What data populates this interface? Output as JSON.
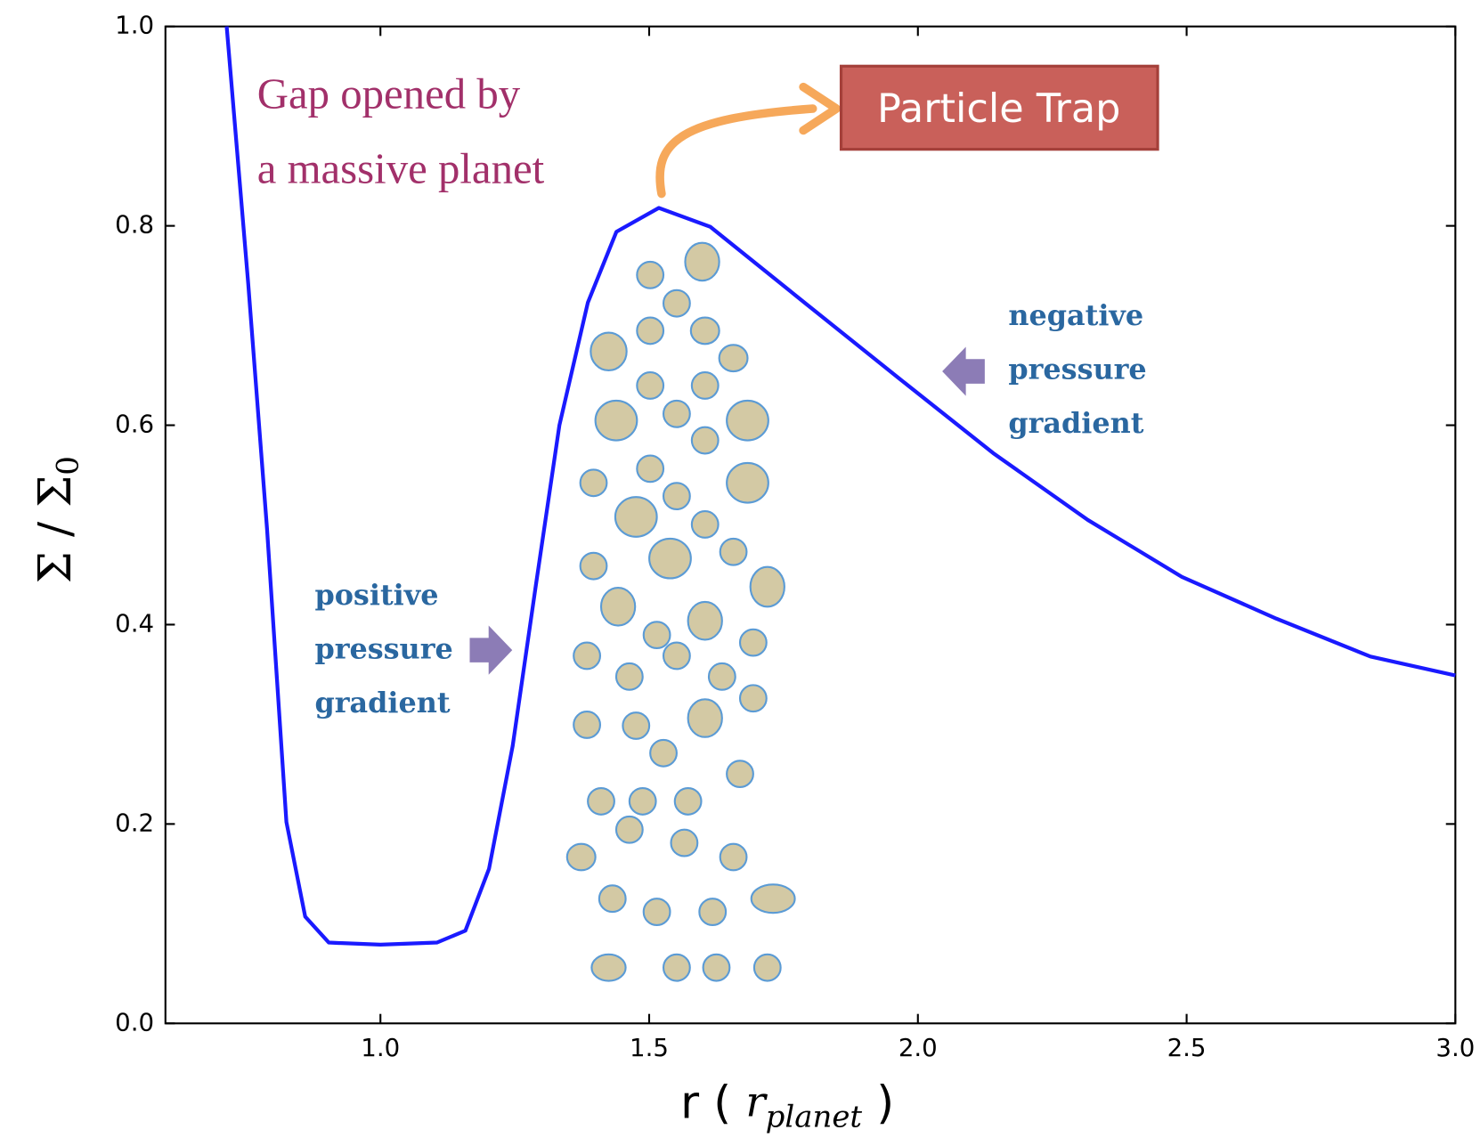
{
  "chart_data": {
    "type": "line",
    "ylabel_parts": [
      "Σ / Σ",
      "0"
    ],
    "xlabel_parts": [
      "r (",
      "r",
      "planet",
      ")"
    ],
    "annotations": {
      "gap": [
        "Gap opened by",
        "a massive planet"
      ],
      "trap": "Particle Trap",
      "positive": [
        "positive",
        "pressure",
        "gradient"
      ],
      "negative": [
        "negative",
        "pressure",
        "gradient"
      ]
    },
    "x": [
      0.714,
      0.754,
      0.789,
      0.825,
      0.86,
      0.904,
      1.0,
      1.105,
      1.158,
      1.202,
      1.246,
      1.289,
      1.333,
      1.386,
      1.439,
      1.518,
      1.614,
      1.789,
      1.965,
      2.14,
      2.316,
      2.491,
      2.667,
      2.842,
      3.0
    ],
    "values": [
      1.0,
      0.742,
      0.496,
      0.202,
      0.107,
      0.081,
      0.079,
      0.081,
      0.093,
      0.155,
      0.278,
      0.439,
      0.6,
      0.723,
      0.794,
      0.818,
      0.799,
      0.723,
      0.647,
      0.572,
      0.505,
      0.448,
      0.406,
      0.368,
      0.349
    ],
    "color": "#1a1aff",
    "xlim": [
      0.6,
      3.0
    ],
    "ylim": [
      0.0,
      1.0
    ],
    "xticks": [
      {
        "value": 1.0,
        "label": "1.0"
      },
      {
        "value": 1.5,
        "label": "1.5"
      },
      {
        "value": 2.0,
        "label": "2.0"
      },
      {
        "value": 2.5,
        "label": "2.5"
      },
      {
        "value": 3.0,
        "label": "3.0"
      }
    ],
    "yticks": [
      {
        "value": 0.0,
        "label": "0.0"
      },
      {
        "value": 0.2,
        "label": "0.2"
      },
      {
        "value": 0.4,
        "label": "0.4"
      },
      {
        "value": 0.6,
        "label": "0.6"
      },
      {
        "value": 0.8,
        "label": "0.8"
      },
      {
        "value": 1.0,
        "label": "1.0"
      }
    ],
    "grid": false
  }
}
